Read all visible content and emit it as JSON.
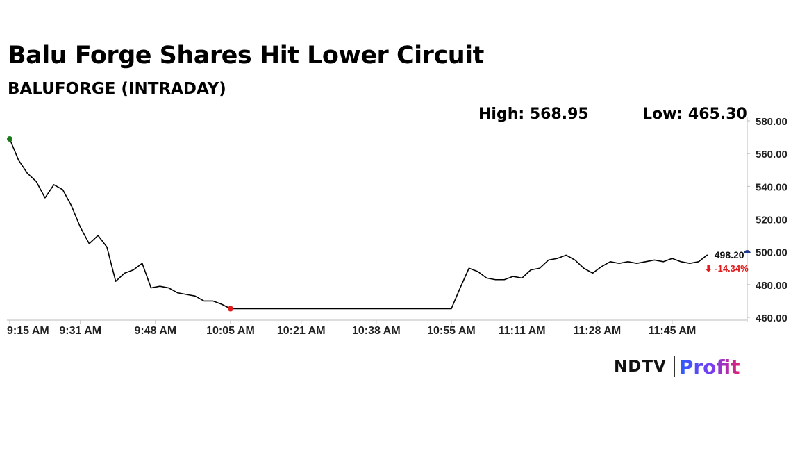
{
  "header": {
    "title": "Balu Forge Shares Hit Lower Circuit",
    "subtitle": "BALUFORGE (INTRADAY)",
    "high_text": "High: 568.95",
    "low_text": "Low: 465.30"
  },
  "logo": {
    "part1": "NDTV",
    "part2": "Profit"
  },
  "colors": {
    "line": "#000000",
    "high_marker": "#1a7a1a",
    "low_marker": "#e01b1b",
    "last_marker": "#1f3a8a",
    "change_negative": "#e01b1b",
    "axis": "#bbbbbb"
  },
  "chart_data": {
    "type": "line",
    "title": "Balu Forge Shares Hit Lower Circuit",
    "subtitle": "BALUFORGE (INTRADAY)",
    "xlabel": "",
    "ylabel": "",
    "x_ticks": [
      "9:15 AM",
      "9:31 AM",
      "9:48 AM",
      "10:05 AM",
      "10:21 AM",
      "10:38 AM",
      "10:55 AM",
      "11:11 AM",
      "11:28 AM",
      "11:45 AM"
    ],
    "y_ticks": [
      "580.00",
      "560.00",
      "540.00",
      "520.00",
      "500.00",
      "480.00",
      "460.00"
    ],
    "ylim": [
      460,
      580
    ],
    "x_range": [
      "9:15 AM",
      "12:02 PM"
    ],
    "grid": false,
    "high": 568.95,
    "low": 465.3,
    "last_price_label": "498.20",
    "change_label": "⬇ -14.34%",
    "series": [
      {
        "x": [
          "9:15",
          "9:17",
          "9:19",
          "9:21",
          "9:23",
          "9:25",
          "9:27",
          "9:29",
          "9:31",
          "9:33",
          "9:35",
          "9:37",
          "9:39",
          "9:41",
          "9:43",
          "9:45",
          "9:47",
          "9:49",
          "9:51",
          "9:53",
          "9:55",
          "9:57",
          "9:59",
          "10:01",
          "10:03",
          "10:05",
          "10:07",
          "10:09",
          "10:55",
          "10:57",
          "10:59",
          "11:01",
          "11:03",
          "11:05",
          "11:07",
          "11:09",
          "11:11",
          "11:13",
          "11:15",
          "11:17",
          "11:19",
          "11:21",
          "11:23",
          "11:25",
          "11:27",
          "11:29",
          "11:31",
          "11:33",
          "11:35",
          "11:37",
          "11:39",
          "11:41",
          "11:43",
          "11:45",
          "11:47",
          "11:49",
          "11:51",
          "11:53"
        ],
        "y": [
          568.95,
          556,
          548,
          543,
          533,
          541,
          538,
          528,
          515,
          505,
          510,
          503,
          482,
          487,
          489,
          493,
          478,
          479,
          478,
          475,
          474,
          473,
          470,
          470,
          468,
          465.3,
          465.3,
          465.3,
          465.3,
          478,
          490,
          488,
          484,
          483,
          483,
          485,
          484,
          489,
          490,
          495,
          496,
          498,
          495,
          490,
          487,
          491,
          494,
          493,
          494,
          493,
          494,
          495,
          494,
          496,
          494,
          493,
          494,
          498.2
        ]
      }
    ]
  }
}
